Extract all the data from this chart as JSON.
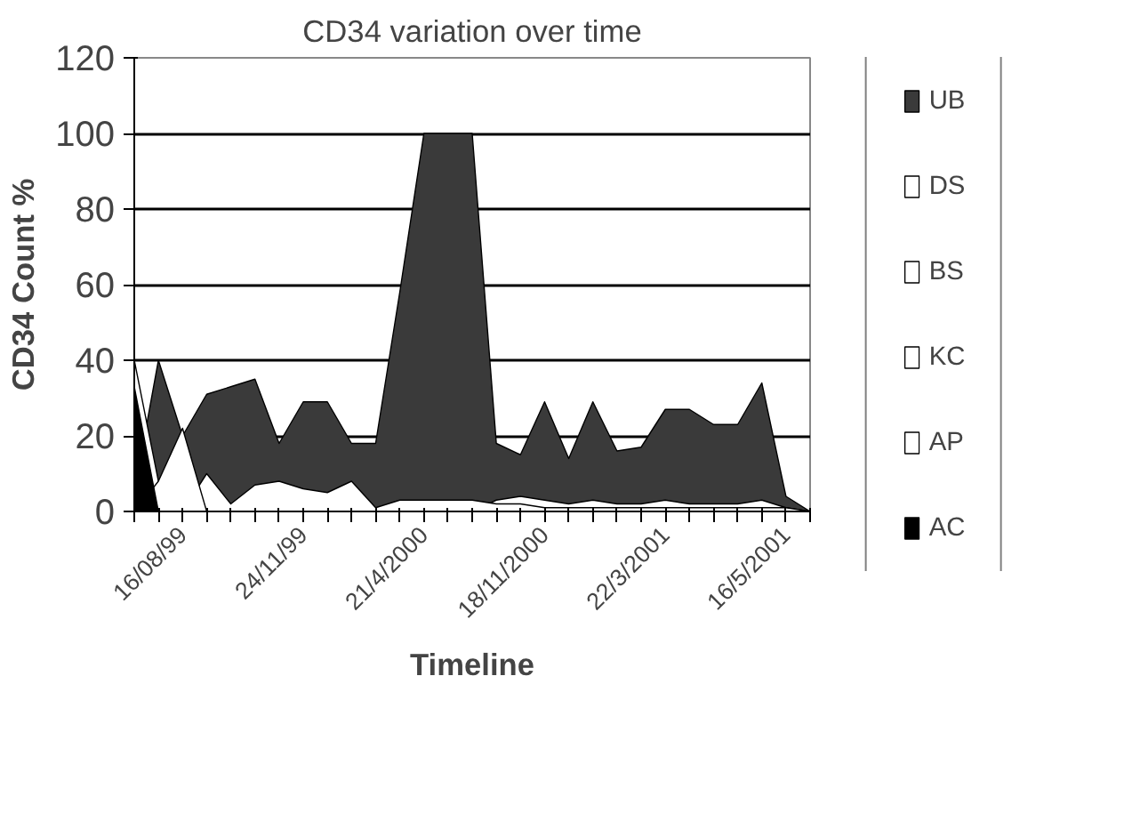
{
  "chart_data": {
    "type": "area",
    "title": "CD34 variation over time",
    "xlabel": "Timeline",
    "ylabel": "CD34 Count %",
    "categories": [
      null,
      null,
      "16/08/99",
      null,
      null,
      null,
      null,
      "24/11/99",
      null,
      null,
      null,
      null,
      "21/4/2000",
      null,
      null,
      null,
      null,
      "18/11/2000",
      null,
      null,
      null,
      null,
      "22/3/2001",
      null,
      null,
      null,
      null,
      "16/5/2001",
      null
    ],
    "series": [
      {
        "name": "UB",
        "color": "#3a3a3a",
        "values": [
          5,
          40,
          20,
          31,
          33,
          35,
          18,
          29,
          29,
          18,
          18,
          58,
          100,
          100,
          100,
          18,
          15,
          29,
          14,
          29,
          16,
          17,
          27,
          27,
          23,
          23,
          34,
          4,
          0
        ]
      },
      {
        "name": "DS",
        "color": "#ffffff",
        "values": [
          40,
          8,
          0,
          null,
          null,
          null,
          null,
          null,
          null,
          null,
          null,
          null,
          null,
          null,
          null,
          null,
          null,
          null,
          null,
          null,
          null,
          null,
          null,
          null,
          null,
          null,
          null,
          null,
          null
        ]
      },
      {
        "name": "BS",
        "color": "#ffffff",
        "values": [
          null,
          null,
          null,
          null,
          null,
          null,
          null,
          null,
          null,
          null,
          null,
          null,
          null,
          null,
          0,
          3,
          4,
          3,
          2,
          3,
          2,
          2,
          3,
          2,
          2,
          2,
          3,
          1,
          0
        ]
      },
      {
        "name": "KC",
        "color": "#ffffff",
        "values": [
          null,
          null,
          0,
          10,
          2,
          7,
          8,
          6,
          5,
          8,
          1,
          3,
          3,
          3,
          3,
          2,
          2,
          1,
          1,
          1,
          1,
          1,
          1,
          1,
          1,
          1,
          1,
          1,
          0
        ]
      },
      {
        "name": "AP",
        "color": "#ffffff",
        "values": [
          0,
          8,
          22,
          0,
          null,
          null,
          null,
          null,
          null,
          null,
          null,
          null,
          null,
          null,
          null,
          null,
          null,
          null,
          null,
          null,
          null,
          null,
          null,
          null,
          null,
          null,
          null,
          null,
          null
        ]
      },
      {
        "name": "AC",
        "color": "#000000",
        "values": [
          33,
          0,
          null,
          null,
          null,
          null,
          null,
          null,
          null,
          null,
          null,
          null,
          null,
          null,
          null,
          null,
          null,
          null,
          null,
          null,
          null,
          null,
          null,
          null,
          null,
          null,
          null,
          null,
          null
        ]
      }
    ],
    "ylim": [
      0,
      120
    ],
    "yticks": [
      0,
      20,
      40,
      60,
      80,
      100,
      120
    ],
    "grid": "y",
    "legend": "right"
  }
}
